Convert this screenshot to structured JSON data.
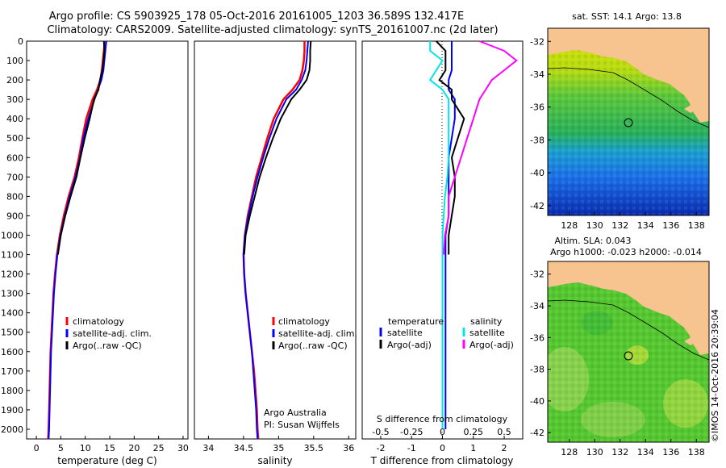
{
  "title_line1": "Argo profile: CS 5903925_178 05-Oct-2016 20161005_1203 36.589S 132.417E",
  "title_line2": "Climatology: CARS2009. Satellite-adjusted climatology: synTS_20161007.nc (2d later)",
  "credit_line1": "Argo Australia",
  "credit_line2": "PI: Susan Wijffels",
  "stamp": "©IMOS 14-Oct-2016 20:39:04",
  "colors": {
    "climatology": "#ff0000",
    "satellite": "#0000ff",
    "argo": "#000000",
    "sal_satellite": "#00e5e5",
    "sal_argo": "#ff00ff",
    "land": "#f7c38f"
  },
  "legend": {
    "climatology": "climatology",
    "satellite_adj": "satellite-adj. clim.",
    "argo_raw": "Argo(..raw -QC)"
  },
  "diff_legend": {
    "temperature": "temperature",
    "salinity": "salinity",
    "satellite": "satellite",
    "argo_adj": "Argo(-adj)"
  },
  "map_top_title": "sat. SST: 14.1  Argo: 13.8",
  "map_bottom_title1": "Altim. SLA: 0.043",
  "map_bottom_title2": "Argo h1000: -0.023 h2000: -0.014",
  "chart_data": [
    {
      "type": "line",
      "name": "temperature",
      "xlabel": "temperature (deg C)",
      "xlim": [
        -2,
        31
      ],
      "ylim": [
        2050,
        0
      ],
      "xticks": [
        "0",
        "5",
        "10",
        "15",
        "20",
        "25",
        "30"
      ],
      "yticks": [
        "0",
        "100",
        "200",
        "300",
        "400",
        "500",
        "600",
        "700",
        "800",
        "900",
        "1000",
        "1100",
        "1200",
        "1300",
        "1400",
        "1500",
        "1600",
        "1700",
        "1800",
        "1900",
        "2000"
      ],
      "y": [
        0,
        50,
        100,
        150,
        200,
        250,
        300,
        400,
        500,
        600,
        700,
        800,
        900,
        1000,
        1100,
        1200,
        1300,
        1400,
        1500,
        1600,
        1700,
        1800,
        1900,
        2000,
        2050
      ],
      "series": [
        {
          "name": "climatology",
          "values": [
            14.0,
            13.8,
            13.6,
            13.4,
            13.1,
            12.4,
            11.5,
            10.2,
            9.4,
            8.7,
            7.8,
            6.6,
            5.6,
            4.8,
            4.2,
            3.8,
            3.5,
            3.3,
            3.1,
            2.9,
            2.8,
            2.7,
            2.6,
            2.5,
            2.4
          ]
        },
        {
          "name": "satellite-adj. clim.",
          "values": [
            14.3,
            14.1,
            13.9,
            13.7,
            13.3,
            12.6,
            11.9,
            10.6,
            9.6,
            8.9,
            8.0,
            6.8,
            5.8,
            4.9,
            4.3,
            3.9,
            3.6,
            3.4,
            3.2,
            3.0,
            2.9,
            2.8,
            2.7,
            2.6,
            2.5
          ]
        },
        {
          "name": "Argo(..raw -QC)",
          "values": [
            13.8,
            13.9,
            13.7,
            13.5,
            13.0,
            12.7,
            11.8,
            10.9,
            9.9,
            9.0,
            8.2,
            7.0,
            5.9,
            5.0,
            4.4
          ]
        }
      ]
    },
    {
      "type": "line",
      "name": "salinity",
      "xlabel": "salinity",
      "xlim": [
        33.8,
        36.1
      ],
      "ylim": [
        2050,
        0
      ],
      "xticks": [
        "34",
        "34.5",
        "35",
        "35.5",
        "36"
      ],
      "y": [
        0,
        50,
        100,
        150,
        200,
        250,
        300,
        400,
        500,
        600,
        700,
        800,
        900,
        1000,
        1100,
        1200,
        1300,
        1400,
        1500,
        1600,
        1700,
        1800,
        1900,
        2000,
        2050
      ],
      "series": [
        {
          "name": "climatology",
          "values": [
            35.37,
            35.37,
            35.36,
            35.34,
            35.3,
            35.2,
            35.07,
            34.93,
            34.84,
            34.76,
            34.68,
            34.62,
            34.56,
            34.52,
            34.5,
            34.51,
            34.53,
            34.56,
            34.59,
            34.62,
            34.65,
            34.67,
            34.69,
            34.7,
            34.71
          ]
        },
        {
          "name": "satellite-adj. clim.",
          "values": [
            35.42,
            35.41,
            35.4,
            35.38,
            35.33,
            35.25,
            35.11,
            34.97,
            34.87,
            34.78,
            34.7,
            34.63,
            34.57,
            34.52,
            34.5,
            34.51,
            34.53,
            34.56,
            34.59,
            34.62,
            34.64,
            34.66,
            34.68,
            34.69,
            34.7
          ]
        },
        {
          "name": "Argo(..raw -QC)",
          "values": [
            35.46,
            35.45,
            35.45,
            35.44,
            35.4,
            35.3,
            35.18,
            35.03,
            34.92,
            34.82,
            34.73,
            34.66,
            34.59,
            34.53,
            34.51
          ]
        }
      ]
    },
    {
      "type": "line",
      "name": "difference",
      "xlabel": "T difference from climatology",
      "xlabel2": "S difference from climatology",
      "xlim": [
        -2.6,
        2.6
      ],
      "ylim": [
        2050,
        0
      ],
      "xticks": [
        "-2",
        "-1",
        "0",
        "1",
        "2"
      ],
      "xticks2": [
        "-0.5",
        "-0.25",
        "0",
        "0.25",
        "0.5"
      ],
      "y": [
        0,
        50,
        100,
        150,
        200,
        250,
        300,
        400,
        500,
        600,
        700,
        800,
        900,
        1000,
        1100,
        1200,
        1300,
        1400,
        1500,
        1600,
        1700,
        1800,
        1900,
        2000
      ],
      "series": [
        {
          "name": "temperature satellite",
          "values": [
            0.3,
            0.3,
            0.3,
            0.3,
            0.2,
            0.2,
            0.4,
            0.4,
            0.3,
            0.2,
            0.2,
            0.2,
            0.2,
            0.1,
            0.1,
            0.1,
            0.1,
            0.1,
            0.1,
            0.1,
            0.1,
            0.1,
            0.1,
            0.1
          ]
        },
        {
          "name": "temperature Argo(-adj)",
          "values": [
            -0.2,
            0.1,
            0.1,
            0.1,
            -0.1,
            0.3,
            0.3,
            0.7,
            0.5,
            0.3,
            0.4,
            0.4,
            0.3,
            0.2,
            0.2
          ]
        },
        {
          "name": "salinity satellite",
          "values": [
            -0.1,
            -0.1,
            0.0,
            -0.05,
            -0.1,
            0.0,
            0.05,
            0.05,
            0.05,
            0.05,
            0.04,
            0.02,
            0.01,
            0.0,
            0.0,
            0.0,
            0.0,
            0.0,
            0.0,
            0.0,
            0.0,
            0.0,
            0.0,
            0.0
          ]
        },
        {
          "name": "salinity Argo(-adj)",
          "values": [
            0.3,
            0.5,
            0.6,
            0.5,
            0.4,
            0.35,
            0.3,
            0.25,
            0.2,
            0.15,
            0.1,
            0.05,
            0.05,
            0.02,
            0.01
          ]
        }
      ]
    },
    {
      "type": "heatmap",
      "name": "sst-map",
      "xticks": [
        "128",
        "130",
        "132",
        "134",
        "136",
        "138"
      ],
      "yticks": [
        "-32",
        "-34",
        "-36",
        "-38",
        "-40",
        "-42"
      ],
      "xlim": [
        126.3,
        139.0
      ],
      "ylim": [
        -42.6,
        -31.2
      ],
      "float_position": [
        132.417,
        -36.589
      ]
    },
    {
      "type": "heatmap",
      "name": "sla-map",
      "xticks": [
        "128",
        "130",
        "132",
        "134",
        "136",
        "138"
      ],
      "yticks": [
        "-32",
        "-34",
        "-36",
        "-38",
        "-40",
        "-42"
      ],
      "xlim": [
        126.3,
        139.0
      ],
      "ylim": [
        -42.6,
        -31.2
      ],
      "float_position": [
        132.417,
        -36.589
      ]
    }
  ]
}
